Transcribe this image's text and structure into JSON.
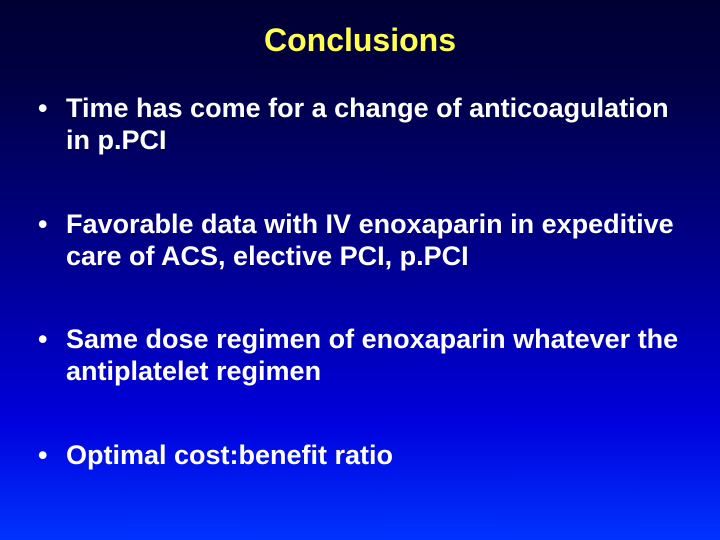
{
  "title": "Conclusions",
  "title_color": "#ffff4d",
  "title_fontsize": 32,
  "bullet_color": "#ffffff",
  "bullet_fontsize": 27,
  "bullet_gap": 52,
  "bullets": [
    "Time has come for a change of anticoagulation in p.PCI",
    "Favorable data with IV enoxaparin in expeditive care of ACS, elective PCI, p.PCI",
    "Same dose regimen of enoxaparin whatever the antiplatelet regimen",
    "Optimal cost:benefit ratio"
  ]
}
